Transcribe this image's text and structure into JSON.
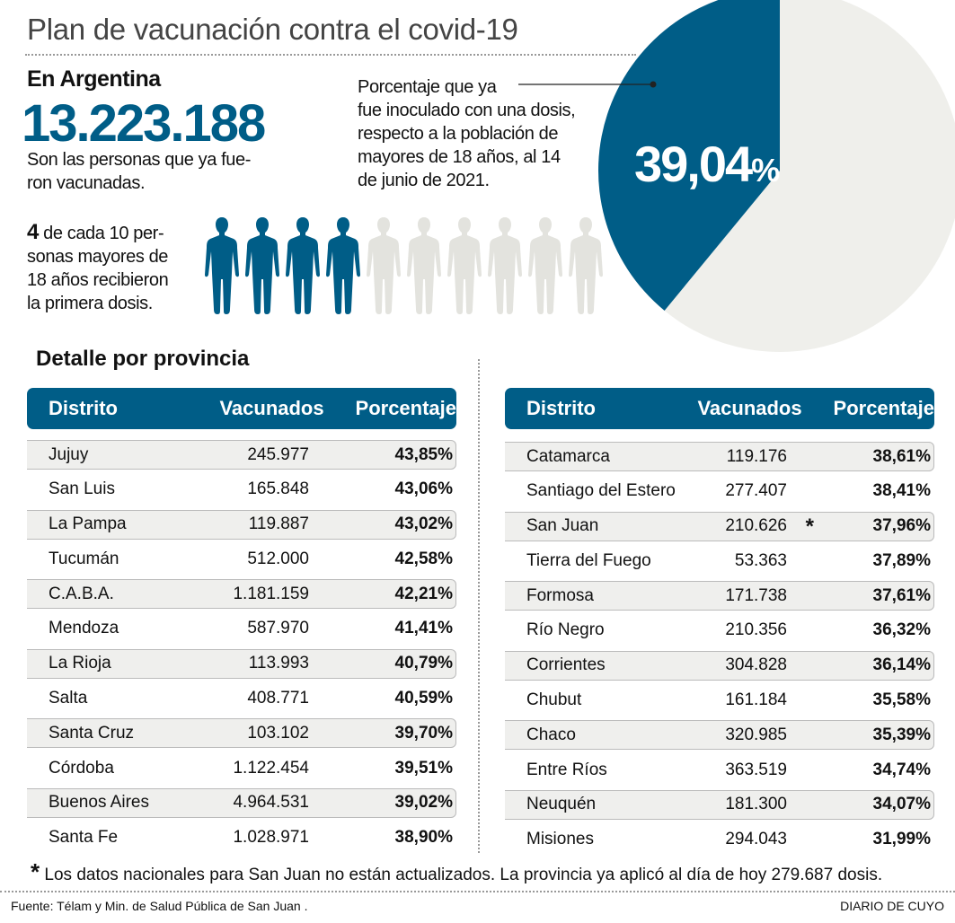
{
  "title": "Plan de vacunación contra el covid-19",
  "summary": {
    "heading": "En Argentina",
    "total": "13.223.188",
    "total_caption": "Son las personas que ya fue-ron vacunadas.",
    "total_caption_l1": "Son las personas que ya fue-",
    "total_caption_l2": "ron vacunadas.",
    "ratio_number": "4",
    "ratio_l1": " de cada 10 per-",
    "ratio_l2": "sonas mayores de",
    "ratio_l3": "18 años recibieron",
    "ratio_l4": "la primera dosis.",
    "figures_vaccinated": 4,
    "figures_total": 10,
    "pie_note_l1": "Porcentaje que ya",
    "pie_note_l2": "fue inoculado con una dosis,",
    "pie_note_l3": "respecto a la población de",
    "pie_note_l4": "mayores de 18 años, al 14",
    "pie_note_l5": "de junio de 2021.",
    "pie_label_num": "39,04",
    "pie_label_pct": "%"
  },
  "colors": {
    "accent": "#005d87",
    "rest": "#efefeb",
    "figure_off": "#e3e3de"
  },
  "chart_data": {
    "type": "pie",
    "title": "Porcentaje que ya fue inoculado con una dosis",
    "slices": [
      {
        "name": "Vacunados",
        "value": 39.04
      },
      {
        "name": "Resto",
        "value": 60.96
      }
    ]
  },
  "detail": {
    "heading": "Detalle por provincia",
    "headers": {
      "district": "Distrito",
      "vaccinated": "Vacunados",
      "percent": "Porcentaje"
    },
    "left": [
      {
        "d": "Jujuy",
        "v": "245.977",
        "p": "43,85%"
      },
      {
        "d": "San Luis",
        "v": "165.848",
        "p": "43,06%"
      },
      {
        "d": "La Pampa",
        "v": "119.887",
        "p": "43,02%"
      },
      {
        "d": "Tucumán",
        "v": "512.000",
        "p": "42,58%"
      },
      {
        "d": "C.A.B.A.",
        "v": "1.181.159",
        "p": "42,21%"
      },
      {
        "d": "Mendoza",
        "v": "587.970",
        "p": "41,41%"
      },
      {
        "d": "La Rioja",
        "v": "113.993",
        "p": "40,79%"
      },
      {
        "d": "Salta",
        "v": "408.771",
        "p": "40,59%"
      },
      {
        "d": "Santa Cruz",
        "v": "103.102",
        "p": "39,70%"
      },
      {
        "d": "Córdoba",
        "v": "1.122.454",
        "p": "39,51%"
      },
      {
        "d": "Buenos Aires",
        "v": "4.964.531",
        "p": "39,02%"
      },
      {
        "d": "Santa Fe",
        "v": "1.028.971",
        "p": "38,90%"
      }
    ],
    "right": [
      {
        "d": "Catamarca",
        "v": "119.176",
        "p": "38,61%"
      },
      {
        "d": "Santiago del Estero",
        "v": "277.407",
        "p": "38,41%"
      },
      {
        "d": "San Juan",
        "v": "210.626",
        "p": "37,96%",
        "mark": "*"
      },
      {
        "d": "Tierra del Fuego",
        "v": "53.363",
        "p": "37,89%"
      },
      {
        "d": "Formosa",
        "v": "171.738",
        "p": "37,61%"
      },
      {
        "d": "Río Negro",
        "v": "210.356",
        "p": "36,32%"
      },
      {
        "d": "Corrientes",
        "v": "304.828",
        "p": "36,14%"
      },
      {
        "d": "Chubut",
        "v": "161.184",
        "p": "35,58%"
      },
      {
        "d": "Chaco",
        "v": "320.985",
        "p": "35,39%"
      },
      {
        "d": "Entre Ríos",
        "v": "363.519",
        "p": "34,74%"
      },
      {
        "d": "Neuquén",
        "v": "181.300",
        "p": "34,07%"
      },
      {
        "d": "Misiones",
        "v": "294.043",
        "p": "31,99%"
      }
    ]
  },
  "footnote": {
    "mark": "*",
    "text": "Los datos nacionales para San Juan no están actualizados. La provincia ya aplicó al día de hoy 279.687 dosis."
  },
  "footer": {
    "source": "Fuente: Télam y Min. de Salud Pública de San Juan .",
    "brand": "DIARIO DE CUYO"
  }
}
